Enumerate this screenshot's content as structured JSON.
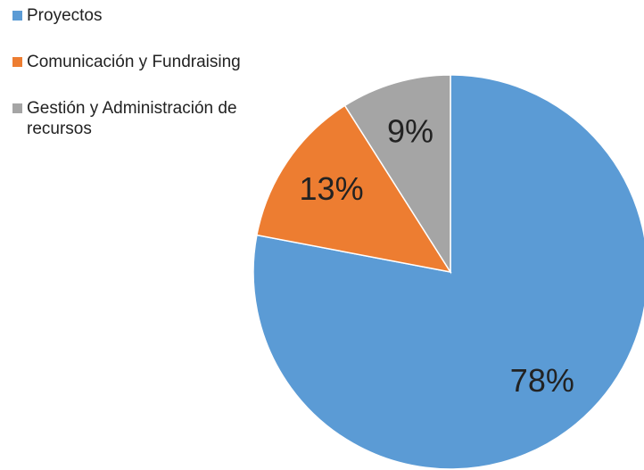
{
  "chart_data": {
    "type": "pie",
    "categories": [
      "Proyectos",
      "Comunicación y Fundraising",
      "Gestión y Administración de recursos"
    ],
    "values": [
      78,
      13,
      9
    ],
    "value_labels": [
      "78%",
      "13%",
      "9%"
    ],
    "colors": [
      "#5b9bd5",
      "#ed7d31",
      "#a5a5a5"
    ],
    "legend": "top-left"
  }
}
